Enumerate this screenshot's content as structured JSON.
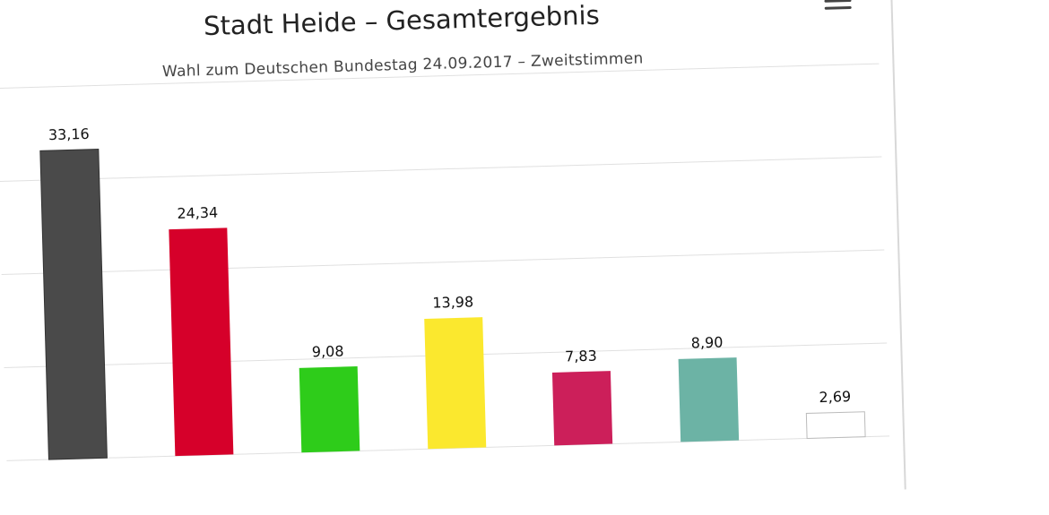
{
  "chart_data": {
    "type": "bar",
    "title": "Stadt Heide – Gesamtergebnis",
    "subtitle": "Wahl zum Deutschen Bundestag 24.09.2017 – Zweitstimmen",
    "values": [
      33.16,
      24.34,
      9.08,
      13.98,
      7.83,
      8.9,
      2.69
    ],
    "data_labels": [
      "33,16",
      "24,34",
      "9,08",
      "13,98",
      "7,83",
      "8,90",
      "2,69"
    ],
    "colors": [
      "#4a4a4a",
      "#d6002a",
      "#2ecc1a",
      "#fbe82e",
      "#cc1f5a",
      "#6cb3a5",
      "#ffffff"
    ],
    "ylim": [
      0,
      40
    ],
    "grid": true
  }
}
